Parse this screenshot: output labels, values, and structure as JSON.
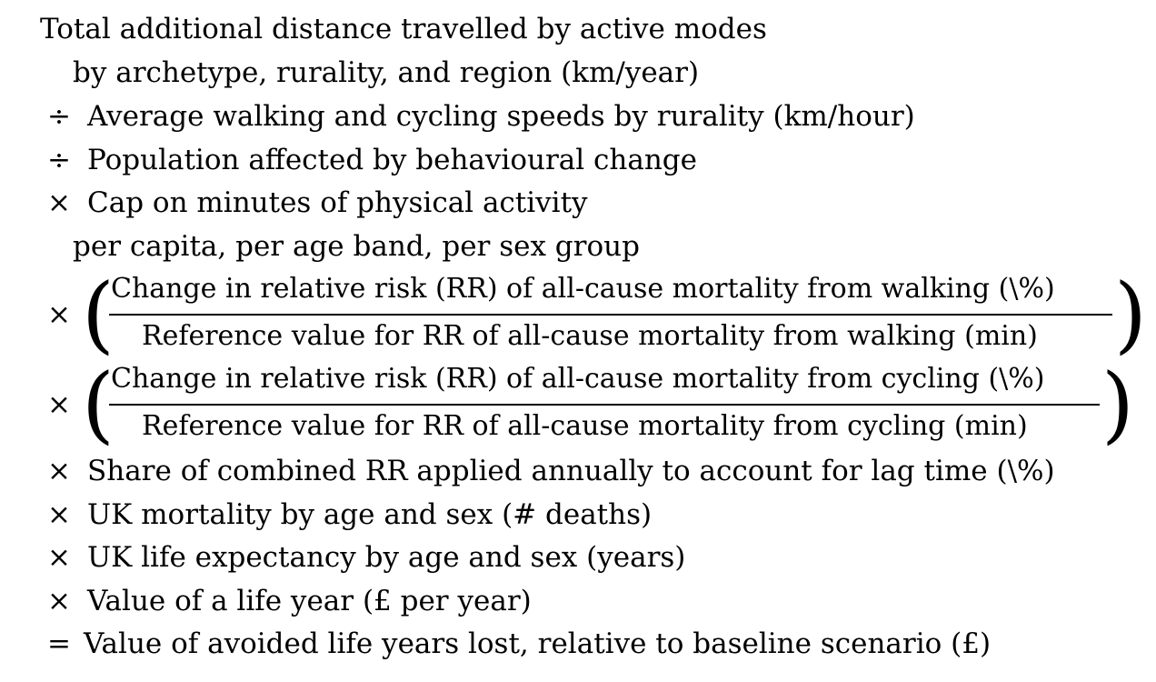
{
  "formula": {
    "line1": "Total additional distance travelled by active modes",
    "line1b": "by archetype, rurality, and region (km/year)",
    "line2_op": "÷",
    "line2": "Average walking and cycling speeds by rurality (km/hour)",
    "line3_op": "÷",
    "line3": "Population affected by behavioural change",
    "line4_op": "×",
    "line4": "Cap on minutes of physical activity",
    "line4b": "per capita, per age band, per sex group",
    "walk_op": "×",
    "walk_num": "Change in relative risk (RR) of all-cause mortality from walking (\\%)",
    "walk_den": "Reference value for RR of all-cause mortality from walking (min)",
    "cycle_op": "×",
    "cycle_num": "Change in relative risk (RR) of all-cause mortality from cycling (\\%)",
    "cycle_den": "Reference value for RR of all-cause mortality from cycling (min)",
    "line7_op": "×",
    "line7": "Share of combined RR applied annually to account for lag time (\\%)",
    "line8_op": "×",
    "line8": "UK mortality by age and sex (# deaths)",
    "line9_op": "×",
    "line9": "UK life expectancy by age and sex (years)",
    "line10_op": "×",
    "line10": "Value of a life year (£ per year)",
    "line11_op": "=",
    "line11": "Value of avoided life years lost, relative to baseline scenario (£)"
  }
}
